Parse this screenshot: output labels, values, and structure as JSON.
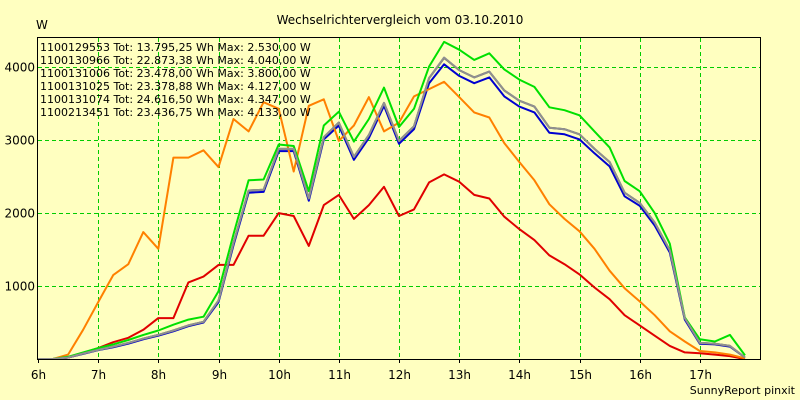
{
  "chart_data": {
    "type": "line",
    "title": "Wechselrichtervergleich vom 03.10.2010",
    "ylabel": "W",
    "xlabel": "",
    "footer": "SunnyReport pinxit",
    "grid": true,
    "ylim": [
      0,
      4400
    ],
    "xlim": [
      6,
      18
    ],
    "xticks": [
      6,
      7,
      8,
      9,
      10,
      11,
      12,
      13,
      14,
      15,
      16,
      17
    ],
    "xtick_labels": [
      "6h",
      "7h",
      "8h",
      "9h",
      "10h",
      "11h",
      "12h",
      "13h",
      "14h",
      "15h",
      "16h",
      "17h"
    ],
    "yticks": [
      1000,
      2000,
      3000,
      4000
    ],
    "ytick_labels": [
      "1000",
      "2000",
      "3000",
      "4000"
    ],
    "x": [
      6.0,
      6.25,
      6.5,
      6.75,
      7.0,
      7.25,
      7.5,
      7.75,
      8.0,
      8.25,
      8.5,
      8.75,
      9.0,
      9.25,
      9.5,
      9.75,
      10.0,
      10.25,
      10.5,
      10.75,
      11.0,
      11.25,
      11.5,
      11.75,
      12.0,
      12.25,
      12.5,
      12.75,
      13.0,
      13.25,
      13.5,
      13.75,
      14.0,
      14.25,
      14.5,
      14.75,
      15.0,
      15.25,
      15.5,
      15.75,
      16.0,
      16.25,
      16.5,
      16.75,
      17.0,
      17.25,
      17.5,
      17.75
    ],
    "series": [
      {
        "name": "1100129553",
        "legend": "1100129553 Tot: 13.795,25 Wh Max: 2.530,00 W",
        "color": "#e00000",
        "values": [
          0,
          0,
          20,
          80,
          150,
          230,
          290,
          400,
          560,
          560,
          1050,
          1130,
          1290,
          1290,
          1690,
          1690,
          2000,
          1960,
          1550,
          2110,
          2250,
          1920,
          2110,
          2360,
          1960,
          2050,
          2420,
          2530,
          2430,
          2250,
          2200,
          1950,
          1780,
          1630,
          1420,
          1300,
          1160,
          980,
          820,
          600,
          460,
          320,
          180,
          90,
          80,
          60,
          40,
          0
        ]
      },
      {
        "name": "1100130966",
        "legend": "1100130966 Tot: 22.873,38 Wh Max: 4.040,00 W",
        "color": "#0000d0",
        "values": [
          0,
          0,
          20,
          70,
          120,
          160,
          210,
          270,
          320,
          380,
          450,
          500,
          780,
          1560,
          2280,
          2290,
          2850,
          2850,
          2170,
          3010,
          3200,
          2730,
          3030,
          3470,
          2950,
          3150,
          3780,
          4040,
          3880,
          3780,
          3860,
          3600,
          3460,
          3380,
          3100,
          3080,
          3010,
          2820,
          2640,
          2230,
          2100,
          1830,
          1460,
          540,
          210,
          200,
          170,
          20
        ]
      },
      {
        "name": "1100131006",
        "legend": "1100131006 Tot: 23.478,00 Wh Max: 3.800,00 W",
        "color": "#ff8000",
        "values": [
          0,
          0,
          60,
          400,
          780,
          1150,
          1300,
          1740,
          1510,
          2760,
          2760,
          2860,
          2630,
          3290,
          3120,
          3520,
          3430,
          2570,
          3470,
          3560,
          2990,
          3200,
          3590,
          3120,
          3240,
          3600,
          3700,
          3800,
          3590,
          3380,
          3310,
          2960,
          2700,
          2450,
          2120,
          1920,
          1750,
          1510,
          1210,
          970,
          790,
          600,
          380,
          240,
          110,
          90,
          60,
          10
        ]
      },
      {
        "name": "1100131025",
        "legend": "1100131025 Tot: 23.378,88 Wh Max: 4.127,00 W",
        "color": "#404040",
        "values": [
          0,
          0,
          20,
          75,
          125,
          170,
          220,
          280,
          330,
          390,
          460,
          510,
          800,
          1590,
          2310,
          2320,
          2880,
          2880,
          2200,
          3040,
          3240,
          2770,
          3070,
          3510,
          2990,
          3190,
          3850,
          4127,
          3960,
          3860,
          3940,
          3680,
          3540,
          3460,
          3170,
          3150,
          3080,
          2880,
          2700,
          2280,
          2140,
          1870,
          1490,
          560,
          220,
          210,
          180,
          20
        ]
      },
      {
        "name": "1100131074",
        "legend": "1100131074 Tot: 24.616,50 Wh Max: 4.347,00 W",
        "color": "#00e000",
        "values": [
          0,
          0,
          30,
          90,
          150,
          200,
          260,
          330,
          390,
          470,
          540,
          580,
          930,
          1710,
          2450,
          2460,
          2940,
          2920,
          2300,
          3200,
          3390,
          2980,
          3290,
          3720,
          3180,
          3430,
          4010,
          4347,
          4240,
          4100,
          4190,
          3970,
          3830,
          3730,
          3450,
          3410,
          3340,
          3120,
          2900,
          2440,
          2300,
          2000,
          1580,
          570,
          270,
          240,
          330,
          50
        ]
      },
      {
        "name": "1100213451",
        "legend": "1100213451 Tot: 23.436,75 Wh Max: 4.133,00 W",
        "color": "#909090",
        "values": [
          0,
          0,
          20,
          75,
          125,
          170,
          220,
          280,
          330,
          390,
          460,
          510,
          800,
          1590,
          2310,
          2320,
          2880,
          2880,
          2200,
          3040,
          3240,
          2770,
          3070,
          3510,
          2990,
          3190,
          3850,
          4133,
          3960,
          3860,
          3940,
          3680,
          3540,
          3460,
          3170,
          3150,
          3080,
          2880,
          2700,
          2280,
          2140,
          1870,
          1490,
          560,
          220,
          210,
          180,
          20
        ]
      }
    ]
  }
}
